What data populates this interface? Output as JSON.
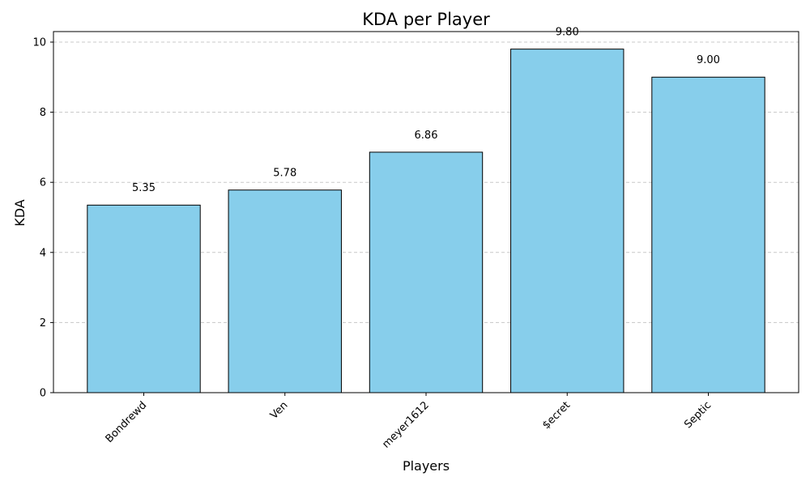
{
  "chart_data": {
    "type": "bar",
    "title": "KDA per Player",
    "xlabel": "Players",
    "ylabel": "KDA",
    "categories": [
      "Bondrewd",
      "Ven",
      "meyer1612",
      "$ecret",
      "Septic"
    ],
    "values": [
      5.35,
      5.78,
      6.86,
      9.8,
      9.0
    ],
    "value_labels": [
      "5.35",
      "5.78",
      "6.86",
      "9.80",
      "9.00"
    ],
    "ylim": [
      0,
      10.3
    ],
    "yticks": [
      0,
      2,
      4,
      6,
      8,
      10
    ],
    "grid": "y-dashed",
    "x_tick_rotation_deg": 45,
    "colors": {
      "bar_fill": "#87ceeb",
      "bar_edge": "#000000",
      "grid": "#c8c8c8",
      "axis": "#000000"
    }
  }
}
